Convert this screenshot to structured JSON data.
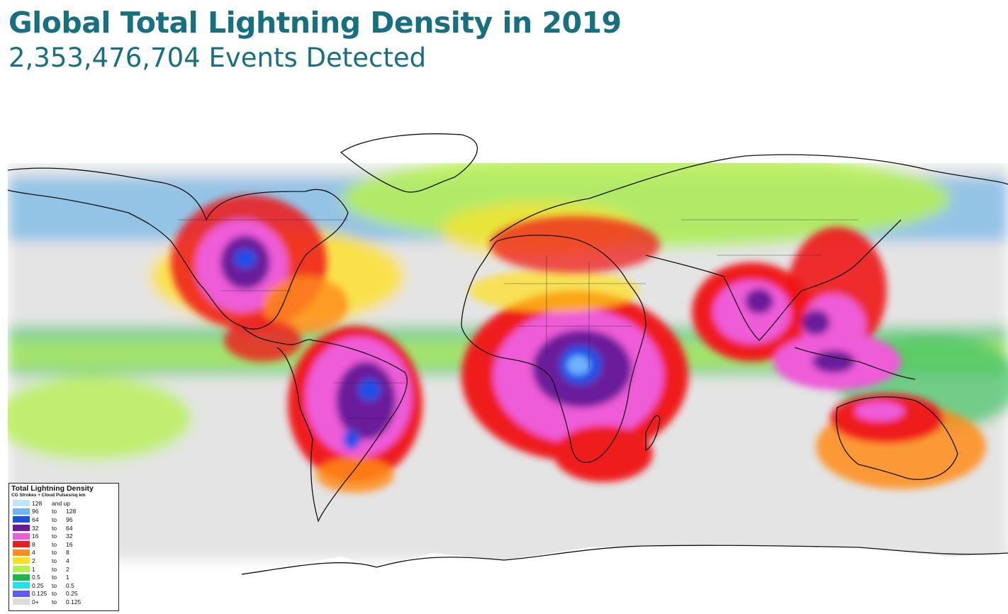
{
  "title": "Global Total Lightning Density in 2019",
  "subtitle": "2,353,476,704 Events Detected",
  "legend": {
    "title": "Total Lightning Density",
    "subtitle": "CG Strokes + Cloud Pulses/sq km",
    "rows": [
      {
        "low": "128",
        "to": "and up",
        "high": "",
        "color": "#bfe6ff"
      },
      {
        "low": "96",
        "to": "to",
        "high": "128",
        "color": "#6fb4ff"
      },
      {
        "low": "64",
        "to": "to",
        "high": "96",
        "color": "#1d4fe6"
      },
      {
        "low": "32",
        "to": "to",
        "high": "64",
        "color": "#6a1a9a"
      },
      {
        "low": "16",
        "to": "to",
        "high": "32",
        "color": "#ee5cd8"
      },
      {
        "low": "8",
        "to": "to",
        "high": "16",
        "color": "#ef1a1a"
      },
      {
        "low": "4",
        "to": "to",
        "high": "8",
        "color": "#ff8c1a"
      },
      {
        "low": "2",
        "to": "to",
        "high": "4",
        "color": "#ffdf1a"
      },
      {
        "low": "1",
        "to": "to",
        "high": "2",
        "color": "#b4f04a"
      },
      {
        "low": "0.5",
        "to": "to",
        "high": "1",
        "color": "#1db84a"
      },
      {
        "low": "0.25",
        "to": "to",
        "high": "0.5",
        "color": "#1ae6f0"
      },
      {
        "low": "0.125",
        "to": "to",
        "high": "0.25",
        "color": "#5a5aff"
      },
      {
        "low": "0+",
        "to": "to",
        "high": "0.125",
        "color": "#dcdcdc"
      }
    ]
  }
}
